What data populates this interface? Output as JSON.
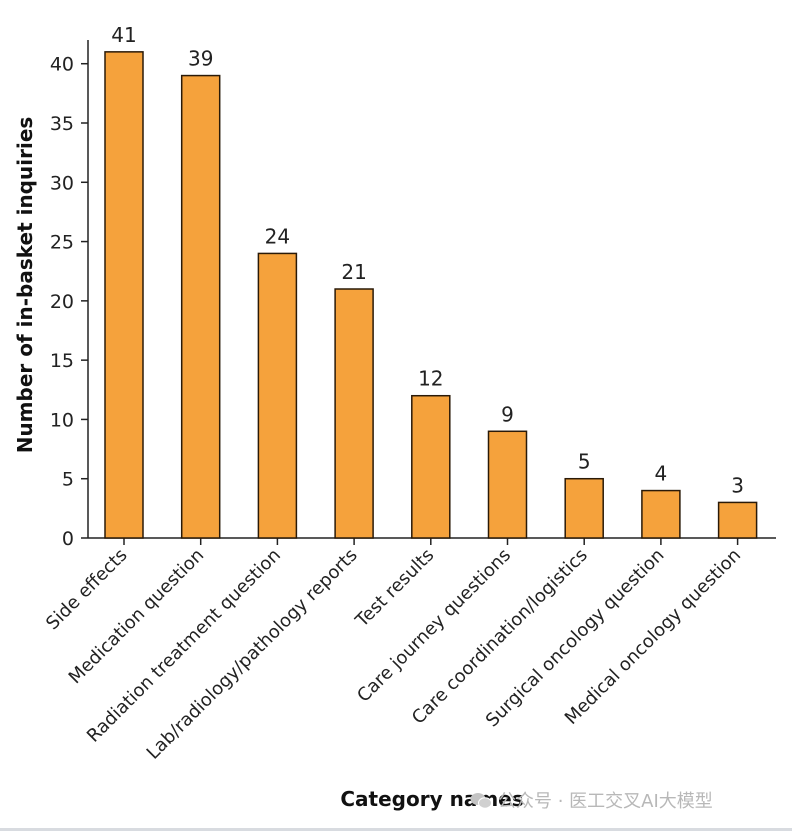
{
  "chart_data": {
    "type": "bar",
    "categories": [
      "Side effects",
      "Medication question",
      "Radiation treatment question",
      "Lab/radiology/pathology reports",
      "Test results",
      "Care journey questions",
      "Care coordination/logistics",
      "Surgical oncology question",
      "Medical oncology question"
    ],
    "values": [
      41,
      39,
      24,
      21,
      12,
      9,
      5,
      4,
      3
    ],
    "xlabel": "Category names",
    "ylabel": "Number of in-basket inquiries",
    "ylim": [
      0,
      42
    ],
    "yticks": [
      0,
      5,
      10,
      15,
      20,
      25,
      30,
      35,
      40
    ],
    "data_labels": true,
    "grid": false,
    "colors": {
      "bar_fill": "#F5A23C",
      "bar_stroke": "#2a1a08",
      "axis": "#222222"
    }
  },
  "watermark": {
    "text": "公众号 · 医工交叉AI大模型",
    "icon": "wechat-icon"
  }
}
